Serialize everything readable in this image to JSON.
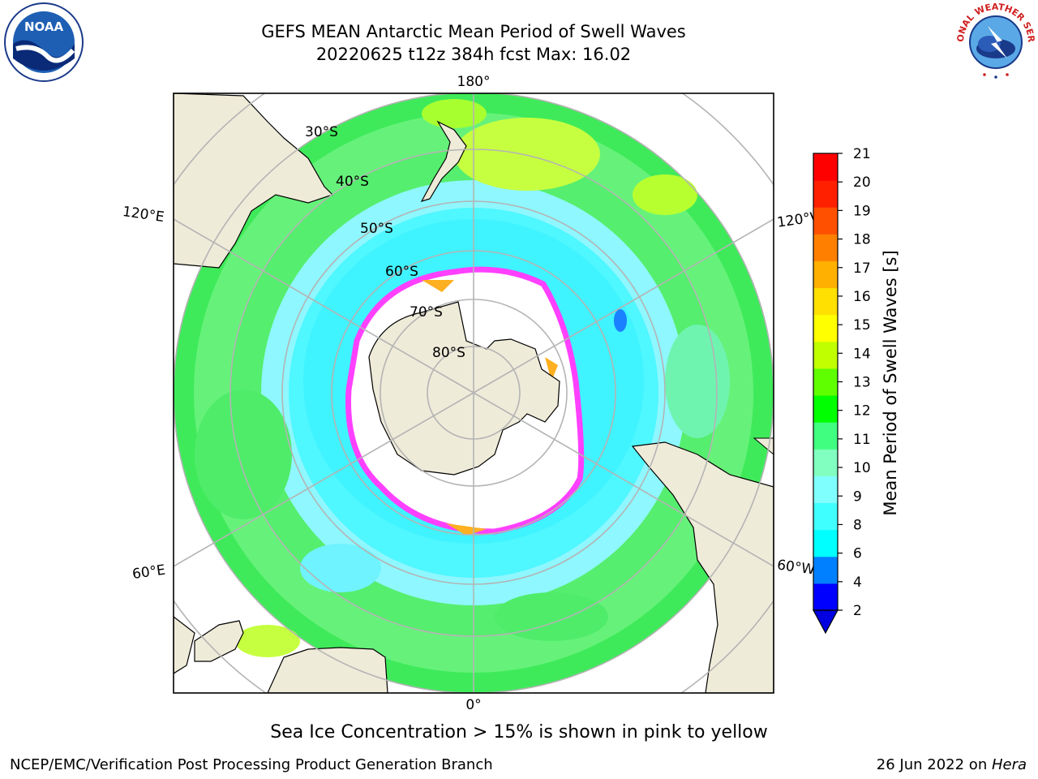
{
  "header": {
    "title_line1": "GEFS MEAN Antarctic Mean Period of Swell Waves",
    "title_line2": "20220625 t12z 384h fcst   Max: 16.02"
  },
  "logos": {
    "left": "NOAA",
    "right": "NATIONAL WEATHER SERVICE"
  },
  "map": {
    "projection": "south-polar-stereographic",
    "lon_labels": {
      "top": "180°",
      "bottom": "0°",
      "left_upper": "120°E",
      "left_lower": "60°E",
      "right_upper": "120°W",
      "right_lower": "60°W"
    },
    "lat_labels": [
      "30°S",
      "40°S",
      "50°S",
      "60°S",
      "70°S",
      "80°S"
    ],
    "colors": {
      "land": "#efebd9",
      "ocean_low": "#88ffff",
      "ocean_mid": "#40ff80",
      "ice_edge": "#ff40ff"
    }
  },
  "colorbar": {
    "label": "Mean Period of Swell Waves [s]",
    "ticks": [
      "21",
      "20",
      "19",
      "18",
      "17",
      "16",
      "15",
      "14",
      "13",
      "12",
      "11",
      "10",
      "9",
      "8",
      "6",
      "4",
      "2"
    ],
    "colors": [
      "#0000ff",
      "#0080ff",
      "#00ffff",
      "#40ffff",
      "#80ffff",
      "#80ffc0",
      "#40ff80",
      "#00ff00",
      "#60ff00",
      "#c0ff00",
      "#ffff00",
      "#ffe000",
      "#ffb000",
      "#ff8000",
      "#ff5000",
      "#ff2000",
      "#ff0000"
    ]
  },
  "caption": "Sea Ice Concentration > 15% is shown in pink to yellow",
  "footer": {
    "left": "NCEP/EMC/Verification Post Processing Product Generation Branch",
    "right_prefix": "26 Jun 2022 on ",
    "right_machine": "Hera"
  }
}
